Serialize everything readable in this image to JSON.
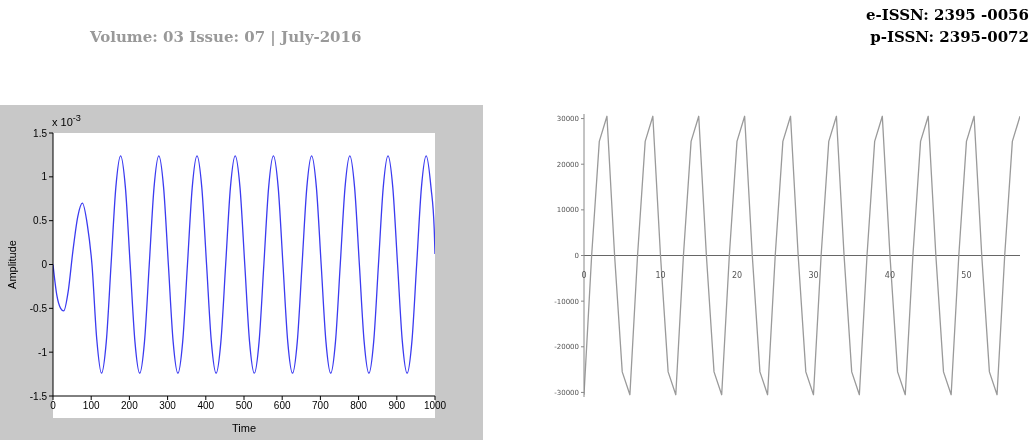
{
  "chart_data": [
    {
      "type": "line",
      "ylabel": "Amplitude",
      "xlabel": "Time",
      "annotations": [
        "x 10$^{-3}$",
        "Volume: 03 Issue: 07 | July-2016",
        "e-ISSN: 2395 -0056",
        "p-ISSN: 2395-0072"
      ],
      "x": [
        0,
        10,
        20,
        28,
        40,
        52,
        65,
        77,
        90,
        102,
        114.5,
        127,
        139.5,
        152,
        164.5,
        177,
        189.5,
        202,
        214.5,
        227,
        239.5,
        252,
        264.5,
        277,
        289.5,
        302,
        314.5,
        327,
        339.5,
        352,
        364.5,
        377,
        389.5,
        402,
        414.5,
        427,
        439.5,
        452,
        464.5,
        477,
        489.5,
        502,
        514.5,
        527,
        539.5,
        552,
        564.5,
        577,
        589.5,
        602,
        614.5,
        627,
        639.5,
        652,
        664.5,
        677,
        689.5,
        702,
        714.5,
        727,
        739.5,
        752,
        764.5,
        777,
        789.5,
        802,
        814.5,
        827,
        839.5,
        852,
        864.5,
        877,
        889.5,
        902,
        914.5,
        927,
        939.5,
        952,
        964.5,
        977,
        989.5,
        998,
        1000
      ],
      "series": [
        {
          "color": "#3b3bf0",
          "values": [
            0,
            -0.35,
            -0.5,
            -0.53,
            -0.3,
            0.15,
            0.55,
            0.7,
            0.45,
            0,
            -0.85,
            -1.24,
            -0.88,
            0,
            0.88,
            1.24,
            0.88,
            0,
            -0.88,
            -1.24,
            -0.88,
            0,
            0.88,
            1.24,
            0.88,
            0,
            -0.88,
            -1.24,
            -0.88,
            0,
            0.88,
            1.24,
            0.88,
            0,
            -0.88,
            -1.24,
            -0.88,
            0,
            0.88,
            1.24,
            0.88,
            0,
            -0.88,
            -1.24,
            -0.88,
            0,
            0.88,
            1.24,
            0.88,
            0,
            -0.88,
            -1.24,
            -0.88,
            0,
            0.88,
            1.24,
            0.88,
            0,
            -0.88,
            -1.24,
            -0.88,
            0,
            0.88,
            1.24,
            0.88,
            0,
            -0.88,
            -1.24,
            -0.88,
            0,
            0.88,
            1.24,
            0.88,
            0,
            -0.88,
            -1.24,
            -0.88,
            0,
            0.88,
            1.24,
            0.88,
            0.4,
            0.12
          ]
        }
      ],
      "xlim": [
        0,
        1000
      ],
      "xticks": [
        0,
        100,
        200,
        300,
        400,
        500,
        600,
        700,
        800,
        900,
        1000
      ],
      "ylim": [
        -1.5,
        1.5
      ],
      "yticks": [
        -1.5,
        -1,
        -0.5,
        0,
        0.5,
        1,
        1.5
      ],
      "grid": false,
      "legend": false
    },
    {
      "type": "line",
      "x": [
        0,
        1,
        2,
        3,
        4,
        5,
        6,
        7,
        8,
        9,
        10,
        11,
        12,
        13,
        14,
        15,
        16,
        17,
        18,
        19,
        20,
        21,
        22,
        23,
        24,
        25,
        26,
        27,
        28,
        29,
        30,
        31,
        32,
        33,
        34,
        35,
        36,
        37,
        38,
        39,
        40,
        41,
        42,
        43,
        44,
        45,
        46,
        47,
        48,
        49,
        50,
        51,
        52,
        53,
        54,
        55,
        56,
        57
      ],
      "series": [
        {
          "color": "#9a9a9a",
          "values": [
            -30500,
            0,
            25000,
            30500,
            0,
            -25500,
            -30500,
            0,
            25000,
            30500,
            0,
            -25500,
            -30500,
            0,
            25000,
            30500,
            0,
            -25500,
            -30500,
            0,
            25000,
            30500,
            0,
            -25500,
            -30500,
            0,
            25000,
            30500,
            0,
            -25500,
            -30500,
            0,
            25000,
            30500,
            0,
            -25500,
            -30500,
            0,
            25000,
            30500,
            0,
            -25500,
            -30500,
            0,
            25000,
            30500,
            0,
            -25500,
            -30500,
            0,
            25000,
            30500,
            0,
            -25500,
            -30500,
            0,
            25000,
            30500
          ]
        }
      ],
      "xlim": [
        0,
        57
      ],
      "xticks": [
        0,
        10,
        20,
        30,
        40,
        50
      ],
      "ylim": [
        -31000,
        31000
      ],
      "yticks": [
        -30000,
        -20000,
        -10000,
        0,
        10000,
        20000,
        30000
      ],
      "grid": false,
      "legend": false
    }
  ]
}
